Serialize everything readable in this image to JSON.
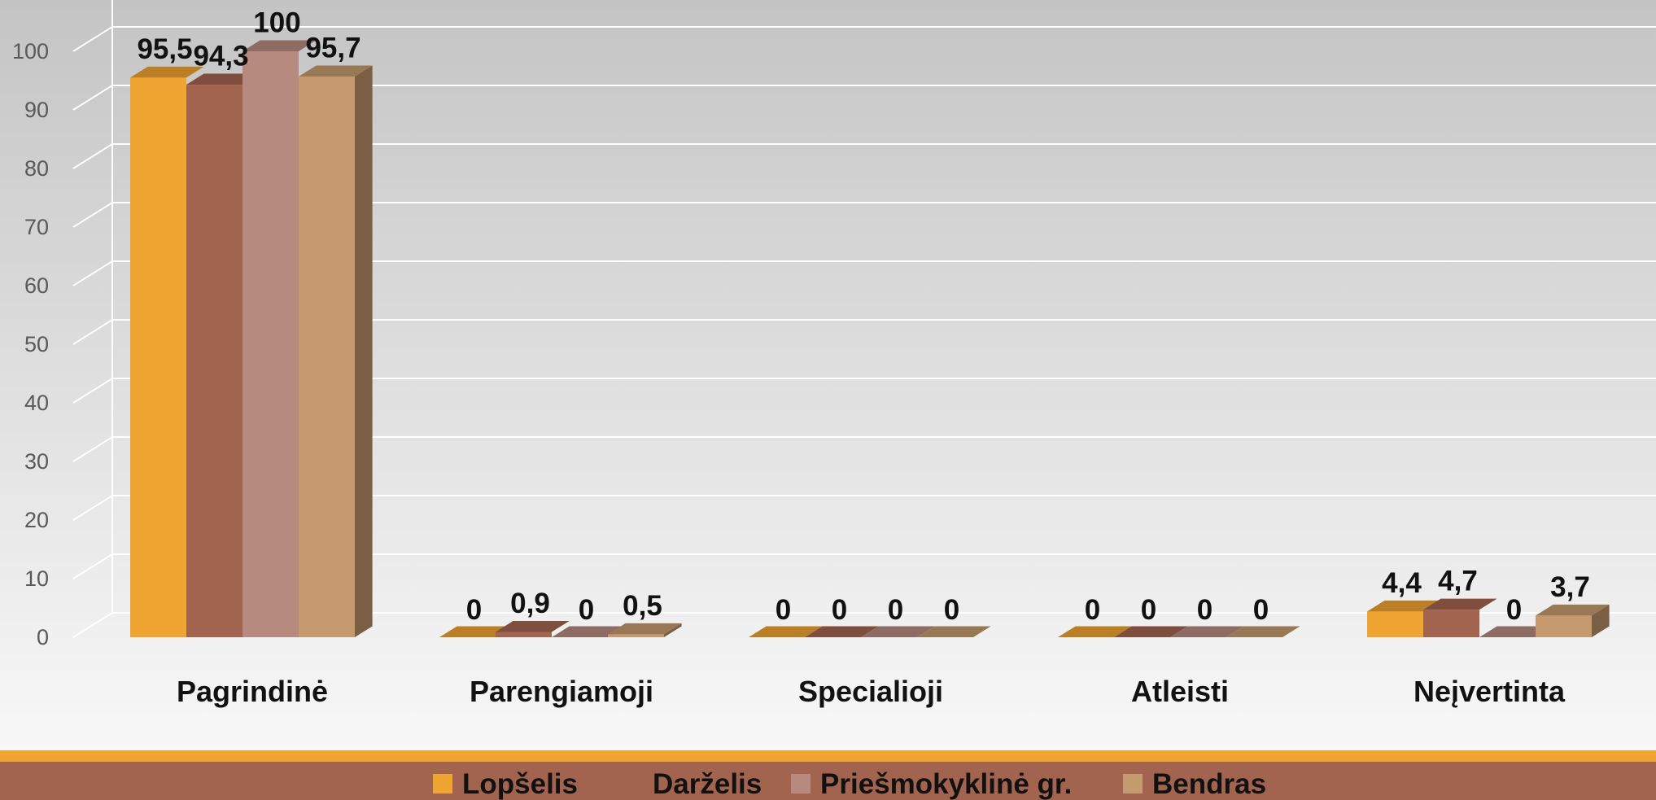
{
  "colors": {
    "background_top": "#c4c4c4",
    "background_bottom": "#fbfbfb",
    "legend_band": "#a3644f",
    "legend_accent": "#f0a431"
  },
  "chart_data": {
    "type": "bar",
    "three_d": true,
    "categories": [
      "Pagrindinė",
      "Parengiamoji",
      "Specialioji",
      "Atleisti",
      "Neįvertinta"
    ],
    "series": [
      {
        "name": "Lopšelis",
        "values": [
          95.5,
          0,
          0,
          0,
          4.4
        ],
        "labels": [
          "95,5",
          "0",
          "0",
          "0",
          "4,4"
        ],
        "color": "#f0a431"
      },
      {
        "name": "Darželis",
        "values": [
          94.3,
          0.9,
          0,
          0,
          4.7
        ],
        "labels": [
          "94,3",
          "0,9",
          "0",
          "0",
          "4,7"
        ],
        "color": "#a3644f"
      },
      {
        "name": "Priešmokyklinė gr.",
        "values": [
          100,
          0,
          0,
          0,
          0
        ],
        "labels": [
          "100",
          "0",
          "0",
          "0",
          "0"
        ],
        "color": "#b78a7f"
      },
      {
        "name": "Bendras",
        "values": [
          95.7,
          0.5,
          0,
          0,
          3.7
        ],
        "labels": [
          "95,7",
          "0,5",
          "0",
          "0",
          "3,7"
        ],
        "color": "#c49a6e"
      }
    ],
    "yticks": [
      "0",
      "10",
      "20",
      "30",
      "40",
      "50",
      "60",
      "70",
      "80",
      "90",
      "100"
    ],
    "ylim": [
      0,
      100
    ],
    "grid": true,
    "legend": "bottom",
    "title": "",
    "xlabel": "",
    "ylabel": ""
  }
}
